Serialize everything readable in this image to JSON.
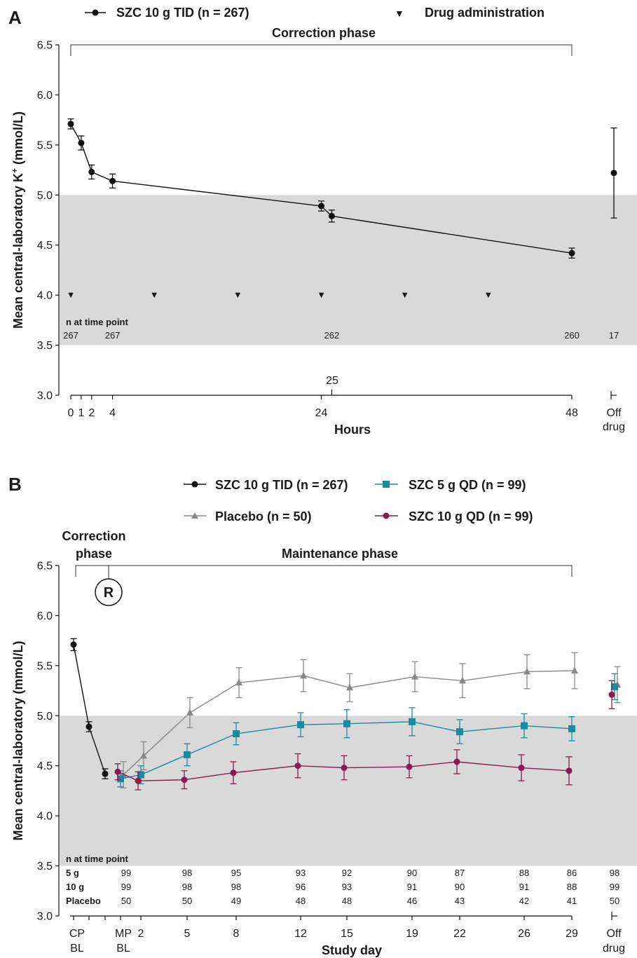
{
  "panel_a": {
    "letter": "A",
    "legend": {
      "series_label": "SZC 10 g TID (n = 267)",
      "drug_label": "Drug administration",
      "drug_marker": "▼"
    },
    "phase_label": "Correction phase",
    "n_header": "n at time point",
    "xlabel": "Hours",
    "extra_x_label": "25",
    "off_drug_line1": "Off",
    "off_drug_line2": "drug"
  },
  "panel_b": {
    "letter": "B",
    "legend": {
      "tid": "SZC 10 g TID (n = 267)",
      "qd5": "SZC 5 g QD (n = 99)",
      "placebo": "Placebo (n = 50)",
      "qd10": "SZC 10 g QD (n = 99)"
    },
    "correction_line1": "Correction",
    "correction_line2": "phase",
    "maintenance_label": "Maintenance phase",
    "randomization_marker": "R",
    "n_header": "n at time point",
    "xlabel": "Study day",
    "off_drug_line1": "Off",
    "off_drug_line2": "drug",
    "cp_bl_line1": "CP",
    "cp_bl_line2": "BL",
    "mp_bl_line1": "MP",
    "mp_bl_line2": "BL"
  },
  "chart_data": [
    {
      "type": "line",
      "panel": "A",
      "title": "",
      "xlabel": "Hours",
      "ylabel": "Mean central-laboratory K+ (mmol/L)",
      "ylabel_main": "Mean central-laboratory K",
      "ylabel_sup": "+",
      "ylabel_tail": " (mmol/L)",
      "ylim": [
        3.0,
        6.5
      ],
      "yticks": [
        "3.0",
        "3.5",
        "4.0",
        "4.5",
        "5.0",
        "5.5",
        "6.0",
        "6.5"
      ],
      "xticks": [
        "0",
        "1",
        "2",
        "4",
        "24",
        "48"
      ],
      "normal_range": [
        3.5,
        5.0
      ],
      "series": [
        {
          "name": "SZC 10 g TID (n = 267)",
          "color": "#111111",
          "x": [
            0,
            1,
            2,
            4,
            24,
            25,
            48
          ],
          "y": [
            5.71,
            5.52,
            5.23,
            5.14,
            4.89,
            4.79,
            4.42
          ],
          "err": [
            0.05,
            0.07,
            0.07,
            0.07,
            0.05,
            0.06,
            0.05
          ]
        }
      ],
      "off_drug": {
        "y": 5.22,
        "err_low": 4.77,
        "err_high": 5.67
      },
      "drug_administration_hours": [
        0,
        8,
        16,
        24,
        32,
        40
      ],
      "n_at_time_point": [
        {
          "x": 0,
          "n": "267"
        },
        {
          "x": 4,
          "n": "267"
        },
        {
          "x": 25,
          "n": "262"
        },
        {
          "x": 48,
          "n": "260"
        },
        {
          "x": "Off drug",
          "n": "17"
        }
      ]
    },
    {
      "type": "line",
      "panel": "B",
      "title": "",
      "xlabel": "Study day",
      "ylabel": "Mean central-laboratory (mmol/L)",
      "ylim": [
        3.0,
        6.5
      ],
      "yticks": [
        "3.0",
        "3.5",
        "4.0",
        "4.5",
        "5.0",
        "5.5",
        "6.0",
        "6.5"
      ],
      "xticks": [
        "CP BL",
        "MP BL",
        "2",
        "5",
        "8",
        "12",
        "15",
        "19",
        "22",
        "26",
        "29",
        "Off drug"
      ],
      "normal_range": [
        3.5,
        5.0
      ],
      "series": [
        {
          "name": "SZC 10 g TID (n = 267)",
          "color": "#111111",
          "marker": "circle",
          "x": [
            "CP BL",
            "Correction day 1",
            "Correction day 2"
          ],
          "y": [
            5.71,
            4.89,
            4.42
          ],
          "err": [
            0.06,
            0.05,
            0.05
          ]
        },
        {
          "name": "Placebo (n = 50)",
          "color": "#888888",
          "marker": "triangle",
          "x": [
            "MP BL",
            "2",
            "5",
            "8",
            "12",
            "15",
            "19",
            "22",
            "26",
            "29"
          ],
          "y": [
            4.41,
            4.6,
            5.03,
            5.33,
            5.4,
            5.28,
            5.39,
            5.35,
            5.44,
            5.45
          ],
          "err": [
            0.13,
            0.14,
            0.15,
            0.15,
            0.16,
            0.14,
            0.15,
            0.17,
            0.17,
            0.18
          ],
          "off_drug": {
            "y": 5.31,
            "err": 0.18
          }
        },
        {
          "name": "SZC 5 g QD (n = 99)",
          "color": "#1a8a9e",
          "marker": "square",
          "x": [
            "MP BL",
            "2",
            "5",
            "8",
            "12",
            "15",
            "19",
            "22",
            "26",
            "29"
          ],
          "y": [
            4.37,
            4.41,
            4.61,
            4.82,
            4.91,
            4.92,
            4.94,
            4.84,
            4.9,
            4.87
          ],
          "err": [
            0.08,
            0.09,
            0.11,
            0.11,
            0.12,
            0.14,
            0.14,
            0.12,
            0.12,
            0.12
          ],
          "off_drug": {
            "y": 5.29,
            "err": 0.13
          }
        },
        {
          "name": "SZC 10 g QD (n = 99)",
          "color": "#8b1a4e",
          "marker": "circle",
          "x": [
            "MP BL",
            "2",
            "5",
            "8",
            "12",
            "15",
            "19",
            "22",
            "26",
            "29"
          ],
          "y": [
            4.44,
            4.35,
            4.36,
            4.43,
            4.5,
            4.48,
            4.49,
            4.54,
            4.48,
            4.45
          ],
          "err": [
            0.08,
            0.09,
            0.09,
            0.11,
            0.12,
            0.12,
            0.11,
            0.12,
            0.13,
            0.14
          ],
          "off_drug": {
            "y": 5.21,
            "err": 0.14
          }
        }
      ],
      "n_at_time_point": {
        "columns": [
          "MP BL",
          "5",
          "8",
          "12",
          "15",
          "19",
          "22",
          "26",
          "29",
          "Off drug"
        ],
        "rows": [
          {
            "label": "5 g",
            "values": [
              "99",
              "98",
              "95",
              "93",
              "92",
              "90",
              "87",
              "88",
              "86",
              "98"
            ]
          },
          {
            "label": "10 g",
            "values": [
              "99",
              "98",
              "98",
              "96",
              "93",
              "91",
              "90",
              "91",
              "88",
              "99"
            ]
          },
          {
            "label": "Placebo",
            "values": [
              "50",
              "50",
              "49",
              "48",
              "48",
              "46",
              "43",
              "42",
              "41",
              "50"
            ]
          }
        ]
      }
    }
  ]
}
